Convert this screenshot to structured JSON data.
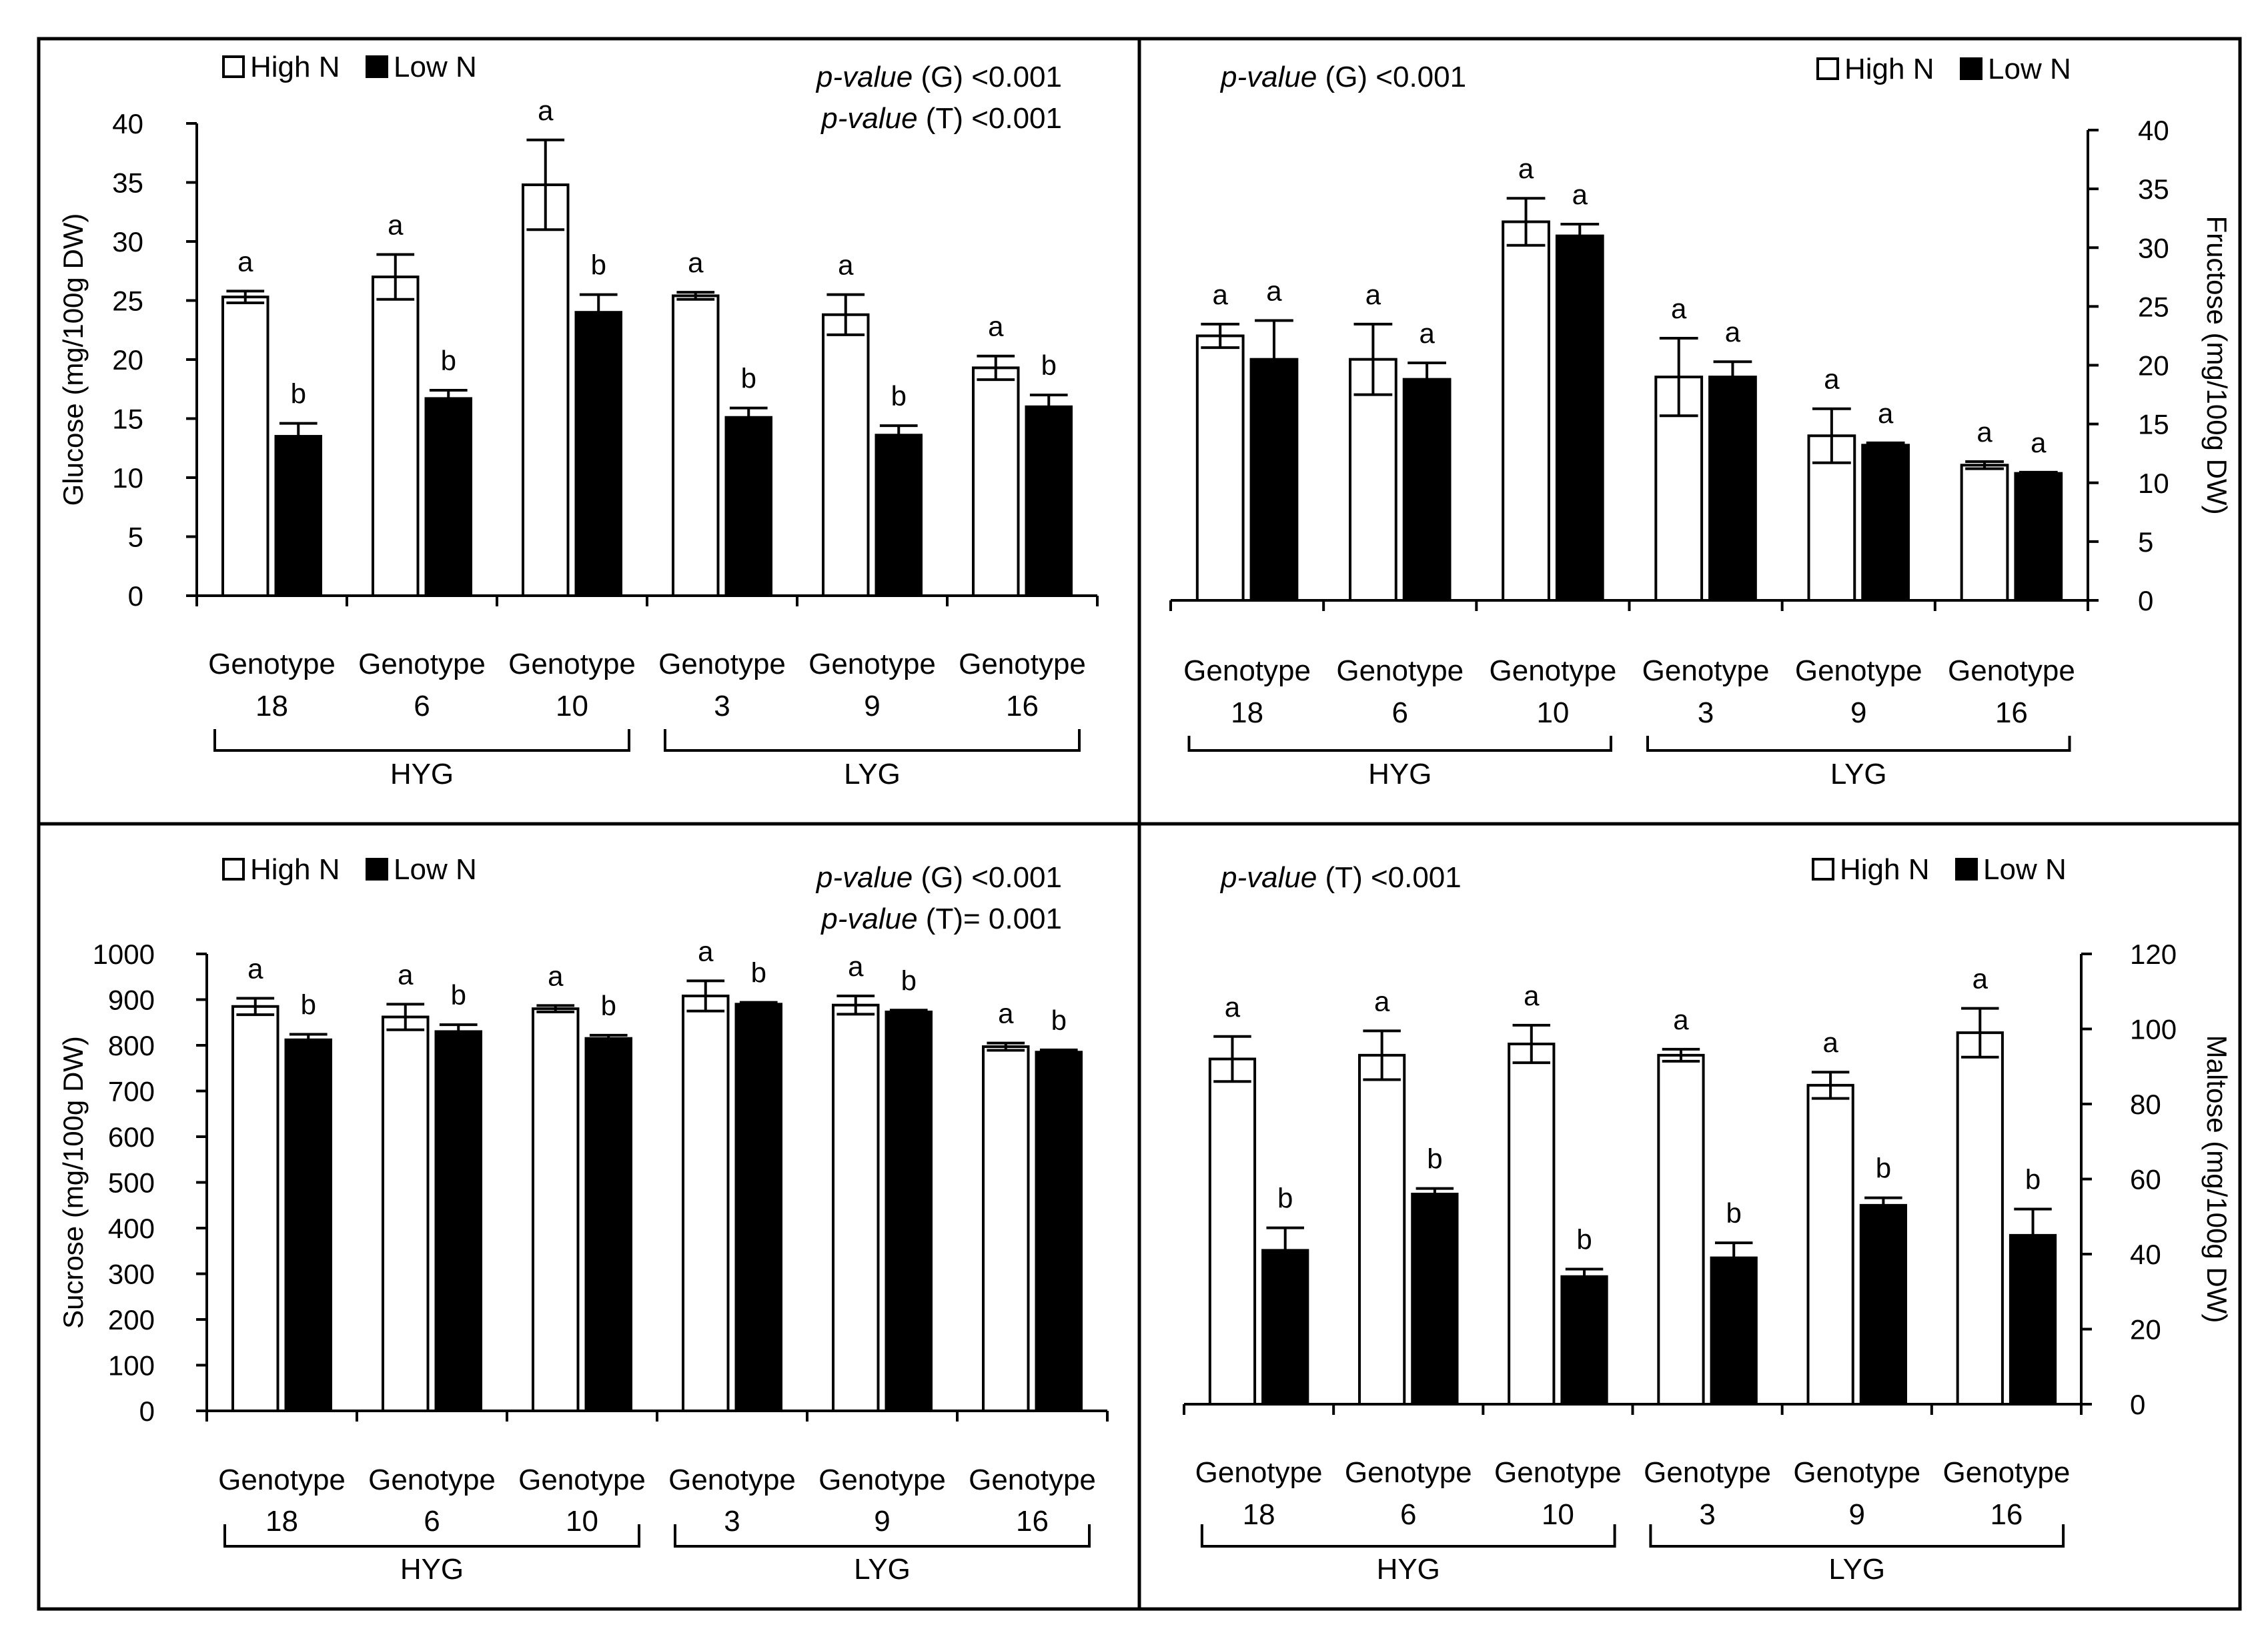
{
  "legend": {
    "high": "High N",
    "low": "Low N"
  },
  "chart_data": [
    {
      "type": "bar",
      "ylabel": "Glucose (mg/100g DW)",
      "y_axis_side": "left",
      "ylim": [
        0,
        40
      ],
      "yticks": [
        0,
        5,
        10,
        15,
        20,
        25,
        30,
        35,
        40
      ],
      "categories": [
        [
          "Genotype",
          "18"
        ],
        [
          "Genotype",
          "6"
        ],
        [
          "Genotype",
          "10"
        ],
        [
          "Genotype",
          "3"
        ],
        [
          "Genotype",
          "9"
        ],
        [
          "Genotype",
          "16"
        ]
      ],
      "groups": [
        {
          "label": "HYG",
          "start": 0,
          "end": 2
        },
        {
          "label": "LYG",
          "start": 3,
          "end": 5
        }
      ],
      "series": [
        {
          "name": "High N",
          "values": [
            25.3,
            27.0,
            34.8,
            25.4,
            23.8,
            19.3
          ],
          "errors": [
            0.5,
            1.9,
            3.8,
            0.3,
            1.7,
            1.0
          ],
          "letters": [
            "a",
            "a",
            "a",
            "a",
            "a",
            "a"
          ]
        },
        {
          "name": "Low N",
          "values": [
            13.5,
            16.7,
            24.0,
            15.1,
            13.6,
            16.0
          ],
          "errors": [
            1.1,
            0.7,
            1.5,
            0.8,
            0.8,
            1.0
          ],
          "letters": [
            "b",
            "b",
            "b",
            "b",
            "b",
            "b"
          ]
        }
      ],
      "legend_position": "top-left",
      "pvalues": [
        {
          "label": "p-value",
          "rest": " (G) <0.001"
        },
        {
          "label": "p-value",
          "rest": " (T) <0.001"
        }
      ],
      "pvalue_position": "top-right"
    },
    {
      "type": "bar",
      "ylabel": "Fructose (mg/100g DW)",
      "y_axis_side": "right",
      "ylim": [
        0,
        40
      ],
      "yticks": [
        0,
        5,
        10,
        15,
        20,
        25,
        30,
        35,
        40
      ],
      "categories": [
        [
          "Genotype",
          "18"
        ],
        [
          "Genotype",
          "6"
        ],
        [
          "Genotype",
          "10"
        ],
        [
          "Genotype",
          "3"
        ],
        [
          "Genotype",
          "9"
        ],
        [
          "Genotype",
          "16"
        ]
      ],
      "groups": [
        {
          "label": "HYG",
          "start": 0,
          "end": 2
        },
        {
          "label": "LYG",
          "start": 3,
          "end": 5
        }
      ],
      "series": [
        {
          "name": "High N",
          "values": [
            22.5,
            20.5,
            32.2,
            19.0,
            14.0,
            11.5
          ],
          "errors": [
            1.0,
            3.0,
            2.0,
            3.3,
            2.3,
            0.3
          ],
          "letters": [
            "a",
            "a",
            "a",
            "a",
            "a",
            "a"
          ]
        },
        {
          "name": "Low N",
          "values": [
            20.5,
            18.8,
            31.0,
            19.0,
            13.2,
            10.8
          ],
          "errors": [
            3.3,
            1.4,
            1.0,
            1.3,
            0.2,
            0.1
          ],
          "letters": [
            "a",
            "a",
            "a",
            "a",
            "a",
            "a"
          ]
        }
      ],
      "legend_position": "top-right",
      "pvalues": [
        {
          "label": "p-value",
          "rest": " (G) <0.001"
        }
      ],
      "pvalue_position": "top-left"
    },
    {
      "type": "bar",
      "ylabel": "Sucrose (mg/100g DW)",
      "y_axis_side": "left",
      "ylim": [
        0,
        1000
      ],
      "yticks": [
        0,
        100,
        200,
        300,
        400,
        500,
        600,
        700,
        800,
        900,
        1000
      ],
      "categories": [
        [
          "Genotype",
          "18"
        ],
        [
          "Genotype",
          "6"
        ],
        [
          "Genotype",
          "10"
        ],
        [
          "Genotype",
          "3"
        ],
        [
          "Genotype",
          "9"
        ],
        [
          "Genotype",
          "16"
        ]
      ],
      "groups": [
        {
          "label": "HYG",
          "start": 0,
          "end": 2
        },
        {
          "label": "LYG",
          "start": 3,
          "end": 5
        }
      ],
      "series": [
        {
          "name": "High N",
          "values": [
            885,
            862,
            880,
            908,
            888,
            797
          ],
          "errors": [
            18,
            28,
            7,
            33,
            20,
            8
          ],
          "letters": [
            "a",
            "a",
            "a",
            "a",
            "a",
            "a"
          ]
        },
        {
          "name": "Low N",
          "values": [
            812,
            830,
            815,
            890,
            873,
            785
          ],
          "errors": [
            12,
            15,
            7,
            4,
            4,
            5
          ],
          "letters": [
            "b",
            "b",
            "b",
            "b",
            "b",
            "b"
          ]
        }
      ],
      "legend_position": "top-left",
      "pvalues": [
        {
          "label": "p-value",
          "rest": " (G) <0.001"
        },
        {
          "label": "p-value",
          "rest": " (T)= 0.001"
        }
      ],
      "pvalue_position": "top-right"
    },
    {
      "type": "bar",
      "ylabel": "Maltose (mg/100g DW)",
      "y_axis_side": "right",
      "ylim": [
        0,
        120
      ],
      "yticks": [
        0,
        20,
        40,
        60,
        80,
        100,
        120
      ],
      "categories": [
        [
          "Genotype",
          "18"
        ],
        [
          "Genotype",
          "6"
        ],
        [
          "Genotype",
          "10"
        ],
        [
          "Genotype",
          "3"
        ],
        [
          "Genotype",
          "9"
        ],
        [
          "Genotype",
          "16"
        ]
      ],
      "groups": [
        {
          "label": "HYG",
          "start": 0,
          "end": 2
        },
        {
          "label": "LYG",
          "start": 3,
          "end": 5
        }
      ],
      "series": [
        {
          "name": "High N",
          "values": [
            92,
            93,
            96,
            93,
            85,
            99
          ],
          "errors": [
            6.0,
            6.5,
            5.0,
            1.6,
            3.5,
            6.5
          ],
          "letters": [
            "a",
            "a",
            "a",
            "a",
            "a",
            "a"
          ]
        },
        {
          "name": "Low N",
          "values": [
            41,
            56,
            34,
            39,
            53,
            45
          ],
          "errors": [
            6.0,
            1.5,
            2.0,
            4.0,
            2.0,
            7.0
          ],
          "letters": [
            "b",
            "b",
            "b",
            "b",
            "b",
            "b"
          ]
        }
      ],
      "legend_position": "top-right",
      "pvalues": [
        {
          "label": "p-value",
          "rest": " (T) <0.001"
        }
      ],
      "pvalue_position": "top-left"
    }
  ]
}
